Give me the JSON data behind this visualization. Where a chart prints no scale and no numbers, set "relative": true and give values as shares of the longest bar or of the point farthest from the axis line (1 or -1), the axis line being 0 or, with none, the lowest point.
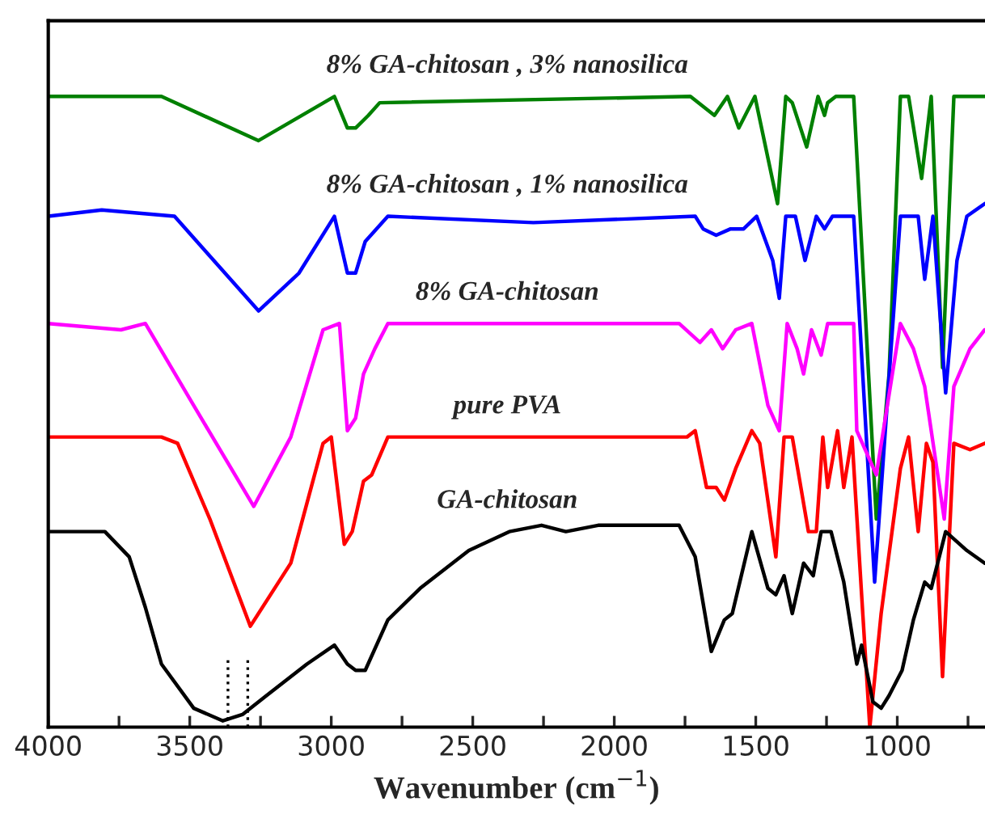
{
  "chart_data": {
    "type": "line",
    "relative": true,
    "xlabel": "Wavenumber (cm$^{−1}$)",
    "xlim": [
      4000,
      690
    ],
    "xticks": [
      4000,
      {
        "value": 3750,
        "label": null
      },
      3500,
      {
        "value": 3250,
        "label": null
      },
      3000,
      {
        "value": 2750,
        "label": null
      },
      2500,
      {
        "value": 2250,
        "label": null
      },
      2000,
      {
        "value": 1750,
        "label": null
      },
      1500,
      {
        "value": 1250,
        "label": null
      },
      1000,
      {
        "value": 750,
        "label": null
      }
    ],
    "grid": false,
    "legend": false,
    "line_style": "solid",
    "marker": "none",
    "ref_lines": [
      {
        "axis": "x",
        "value": 3365,
        "line_style": "dotted",
        "color": "#000000"
      },
      {
        "axis": "x",
        "value": 3295,
        "line_style": "dotted",
        "color": "#000000"
      }
    ],
    "series": [
      {
        "name": "8% GA-chitosan , 3% nanosilica",
        "color": "#008000",
        "x": [
          4000,
          3700,
          3600,
          3257,
          2989,
          2943,
          2914,
          2869,
          2829,
          1731,
          1646,
          1600,
          1560,
          1503,
          1423,
          1394,
          1371,
          1320,
          1280,
          1257,
          1246,
          1217,
          1154,
          1074,
          1029,
          989,
          960,
          914,
          880,
          840,
          800,
          691
        ],
        "values": [
          1.0,
          1.0,
          1.0,
          0.93,
          1.0,
          0.95,
          0.95,
          0.97,
          0.99,
          1.0,
          0.97,
          1.0,
          0.95,
          1.0,
          0.83,
          1.0,
          0.99,
          0.92,
          1.0,
          0.97,
          0.99,
          1.0,
          1.0,
          0.33,
          0.56,
          1.0,
          1.0,
          0.87,
          1.0,
          0.57,
          1.0,
          1.0
        ]
      },
      {
        "name": "8% GA-chitosan , 1% nanosilica",
        "color": "#0000ff",
        "x": [
          4000,
          3811,
          3554,
          3257,
          3114,
          2989,
          2943,
          2914,
          2880,
          2800,
          2286,
          1714,
          1686,
          1640,
          1589,
          1543,
          1497,
          1440,
          1417,
          1394,
          1360,
          1326,
          1286,
          1257,
          1229,
          1154,
          1080,
          989,
          926,
          903,
          874,
          829,
          789,
          754,
          691
        ],
        "values": [
          0.81,
          0.82,
          0.81,
          0.66,
          0.72,
          0.81,
          0.72,
          0.72,
          0.77,
          0.81,
          0.8,
          0.81,
          0.79,
          0.78,
          0.79,
          0.79,
          0.81,
          0.74,
          0.68,
          0.81,
          0.81,
          0.74,
          0.81,
          0.79,
          0.81,
          0.81,
          0.23,
          0.81,
          0.81,
          0.71,
          0.81,
          0.53,
          0.74,
          0.81,
          0.83
        ]
      },
      {
        "name": "8% GA-chitosan",
        "color": "#ff00ff",
        "x": [
          4000,
          3743,
          3657,
          3486,
          3274,
          3143,
          3029,
          2971,
          2943,
          2914,
          2886,
          2846,
          2800,
          1771,
          1697,
          1657,
          1617,
          1571,
          1514,
          1457,
          1417,
          1389,
          1354,
          1331,
          1303,
          1269,
          1246,
          1154,
          1143,
          1074,
          989,
          943,
          903,
          834,
          800,
          743,
          691
        ],
        "values": [
          0.64,
          0.63,
          0.64,
          0.51,
          0.35,
          0.46,
          0.63,
          0.64,
          0.47,
          0.49,
          0.56,
          0.6,
          0.64,
          0.64,
          0.61,
          0.63,
          0.6,
          0.63,
          0.64,
          0.51,
          0.47,
          0.64,
          0.6,
          0.56,
          0.63,
          0.59,
          0.64,
          0.64,
          0.47,
          0.4,
          0.64,
          0.6,
          0.54,
          0.33,
          0.54,
          0.6,
          0.63
        ]
      },
      {
        "name": "pure PVA",
        "color": "#ff0000",
        "x": [
          4000,
          3600,
          3543,
          3429,
          3286,
          3143,
          3029,
          3000,
          2954,
          2926,
          2886,
          2857,
          2800,
          2114,
          1743,
          1714,
          1674,
          1640,
          1611,
          1571,
          1514,
          1486,
          1429,
          1400,
          1371,
          1314,
          1286,
          1263,
          1246,
          1211,
          1189,
          1160,
          1126,
          1097,
          1057,
          989,
          960,
          926,
          897,
          874,
          840,
          800,
          743,
          691
        ],
        "values": [
          0.46,
          0.46,
          0.45,
          0.33,
          0.16,
          0.26,
          0.45,
          0.46,
          0.29,
          0.31,
          0.39,
          0.4,
          0.46,
          0.46,
          0.46,
          0.47,
          0.38,
          0.38,
          0.36,
          0.41,
          0.47,
          0.45,
          0.27,
          0.46,
          0.46,
          0.31,
          0.31,
          0.46,
          0.38,
          0.47,
          0.38,
          0.46,
          0.21,
          0.0,
          0.18,
          0.41,
          0.46,
          0.31,
          0.45,
          0.42,
          0.08,
          0.45,
          0.44,
          0.45
        ]
      },
      {
        "name": "GA-chitosan",
        "color": "#000000",
        "x": [
          4000,
          3800,
          3714,
          3657,
          3600,
          3486,
          3383,
          3314,
          3229,
          3086,
          2989,
          2943,
          2914,
          2880,
          2800,
          2686,
          2514,
          2371,
          2257,
          2171,
          2057,
          1771,
          1714,
          1657,
          1611,
          1583,
          1514,
          1457,
          1429,
          1400,
          1371,
          1331,
          1297,
          1269,
          1234,
          1189,
          1154,
          1143,
          1126,
          1086,
          1057,
          1029,
          983,
          943,
          903,
          880,
          829,
          754,
          691
        ],
        "values": [
          0.31,
          0.31,
          0.27,
          0.19,
          0.1,
          0.03,
          0.01,
          0.02,
          0.05,
          0.1,
          0.13,
          0.1,
          0.09,
          0.09,
          0.17,
          0.22,
          0.28,
          0.31,
          0.32,
          0.31,
          0.32,
          0.32,
          0.27,
          0.12,
          0.17,
          0.18,
          0.31,
          0.22,
          0.21,
          0.24,
          0.18,
          0.26,
          0.24,
          0.31,
          0.31,
          0.23,
          0.13,
          0.1,
          0.13,
          0.04,
          0.03,
          0.05,
          0.09,
          0.17,
          0.23,
          0.22,
          0.31,
          0.28,
          0.26
        ]
      }
    ]
  }
}
